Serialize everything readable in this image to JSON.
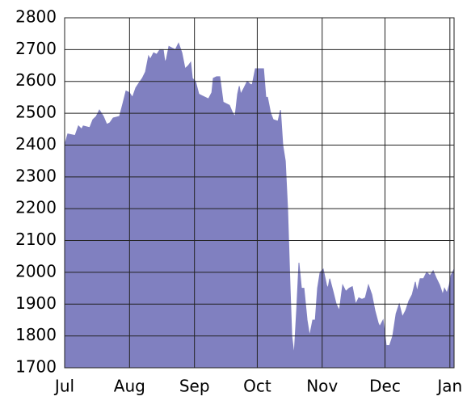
{
  "chart_data": {
    "type": "area",
    "color": "#8080c0",
    "grid": true,
    "x": [
      0,
      1.5,
      5,
      6.6,
      8.1,
      8.9,
      12,
      13.5,
      15.1,
      16.6,
      18.5,
      20.1,
      21.6,
      23.2,
      26.2,
      27.8,
      29.3,
      30.9,
      32.4,
      34,
      35.5,
      37.1,
      38.6,
      40.1,
      40.9,
      42.5,
      44,
      45.5,
      47.1,
      47.9,
      48.6,
      49.8,
      51.3,
      52.9,
      54.4,
      56,
      57.5,
      59.1,
      60.2,
      61,
      62.5,
      64.1,
      65.6,
      67.2,
      68.7,
      70.3,
      71,
      72.6,
      74.1,
      75.7,
      77.2,
      78.7,
      80.3,
      81.4,
      82.6,
      83.4,
      84.1,
      85.7,
      87.2,
      88.8,
      89.6,
      91.1,
      93.4,
      95,
      96.1,
      96.9,
      98.4,
      99.6,
      101.9,
      103.1,
      104.2,
      105.4,
      106.5,
      107.7,
      108.5,
      109.6,
      110.8,
      111.9,
      113.1,
      114.3,
      115.8,
      117,
      118.5,
      119.7,
      120.8,
      122,
      123.5,
      125.1,
      125.8,
      126.6,
      128.2,
      129.7,
      131.2,
      132.8,
      134.3,
      135.9,
      137.4,
      139,
      140.5,
      142,
      143.6,
      145.1,
      146.7,
      148.2,
      149.8,
      150.5,
      152.1,
      153.6,
      155.2,
      156.7,
      158.3,
      159.8,
      161.3,
      162.9,
      164.4,
      166,
      167.5,
      168.3,
      169.8,
      171.4,
      172.9,
      174.5,
      176,
      177.6,
      179.1,
      180.6,
      181.4,
      182.6,
      183.7,
      184.5,
      186
    ],
    "values": [
      2400,
      2435,
      2430,
      2460,
      2450,
      2460,
      2455,
      2480,
      2490,
      2510,
      2490,
      2465,
      2470,
      2485,
      2490,
      2530,
      2570,
      2565,
      2550,
      2580,
      2595,
      2610,
      2630,
      2680,
      2670,
      2690,
      2685,
      2700,
      2700,
      2660,
      2670,
      2710,
      2705,
      2700,
      2720,
      2690,
      2640,
      2650,
      2660,
      2610,
      2600,
      2560,
      2555,
      2550,
      2545,
      2565,
      2610,
      2615,
      2615,
      2535,
      2530,
      2525,
      2500,
      2490,
      2560,
      2585,
      2560,
      2580,
      2600,
      2590,
      2590,
      2640,
      2640,
      2640,
      2550,
      2550,
      2500,
      2480,
      2475,
      2510,
      2400,
      2350,
      2200,
      1950,
      1800,
      1740,
      1880,
      2030,
      1950,
      1950,
      1850,
      1800,
      1850,
      1850,
      1950,
      2000,
      2010,
      1960,
      1950,
      1980,
      1940,
      1900,
      1880,
      1960,
      1940,
      1950,
      1955,
      1900,
      1920,
      1915,
      1920,
      1960,
      1930,
      1880,
      1840,
      1830,
      1850,
      1770,
      1770,
      1800,
      1870,
      1900,
      1860,
      1880,
      1910,
      1930,
      1970,
      1940,
      1980,
      1980,
      2000,
      1990,
      2005,
      1980,
      1960,
      1930,
      1950,
      1935,
      1960,
      1990,
      2010
    ],
    "xlim": [
      0,
      186
    ],
    "xticks": [
      {
        "value": 0,
        "label": "Jul"
      },
      {
        "value": 31,
        "label": "Aug"
      },
      {
        "value": 62,
        "label": "Sep"
      },
      {
        "value": 92,
        "label": "Oct"
      },
      {
        "value": 123,
        "label": "Nov"
      },
      {
        "value": 153,
        "label": "Dec"
      },
      {
        "value": 184,
        "label": "Jan"
      }
    ],
    "ylim": [
      1700,
      2800
    ],
    "yticks": [
      1700,
      1800,
      1900,
      2000,
      2100,
      2200,
      2300,
      2400,
      2500,
      2600,
      2700,
      2800
    ]
  }
}
